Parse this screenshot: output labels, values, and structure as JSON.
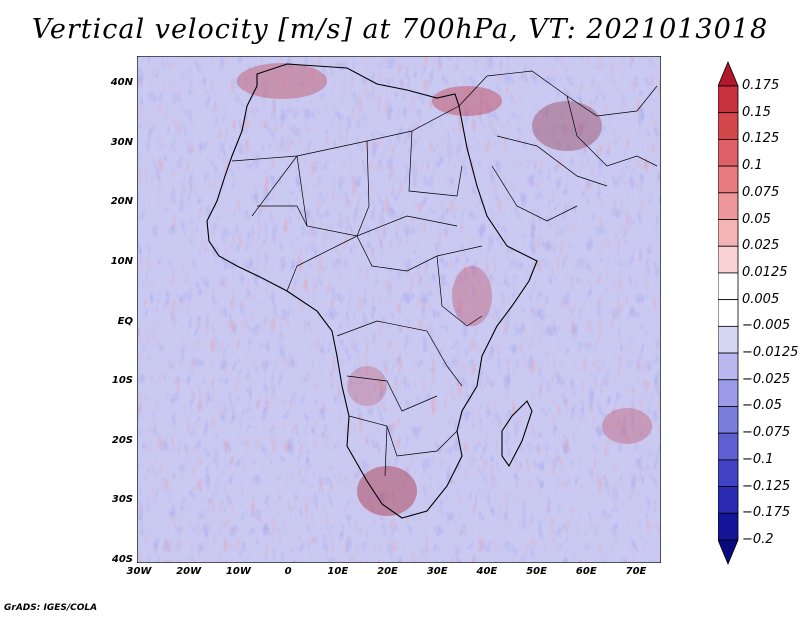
{
  "title": "Vertical velocity [m/s] at 700hPa, VT: 2021013018",
  "footer": "GrADS: IGES/COLA",
  "map": {
    "type": "heatmap",
    "variable": "Vertical velocity",
    "units": "m/s",
    "level": "700hPa",
    "valid_time": "2021013018",
    "region": "Africa",
    "lon_range": [
      -30,
      75
    ],
    "lat_range": [
      -40,
      45
    ],
    "lat_labels": [
      "40N",
      "30N",
      "20N",
      "10N",
      "EQ",
      "10S",
      "20S",
      "30S",
      "40S"
    ],
    "lon_labels": [
      "30W",
      "20W",
      "10W",
      "0",
      "10E",
      "20E",
      "30E",
      "40E",
      "50E",
      "60E",
      "70E"
    ]
  },
  "colorbar": {
    "levels": [
      "0.175",
      "0.15",
      "0.125",
      "0.1",
      "0.075",
      "0.05",
      "0.025",
      "0.0125",
      "0.005",
      "−0.005",
      "−0.0125",
      "−0.025",
      "−0.05",
      "−0.075",
      "−0.1",
      "−0.125",
      "−0.175",
      "−0.2"
    ],
    "colors": [
      "#b2182b",
      "#c8323c",
      "#d4484c",
      "#de6066",
      "#e67a7f",
      "#ee979a",
      "#f4b3b5",
      "#f9d2d3",
      "#ffffff",
      "#ffffff",
      "#d6d6f5",
      "#b8b8ee",
      "#9a9ae6",
      "#7c7cdd",
      "#5f5fd2",
      "#4242c4",
      "#2a2ab2",
      "#15159a",
      "#0a0a80"
    ]
  }
}
